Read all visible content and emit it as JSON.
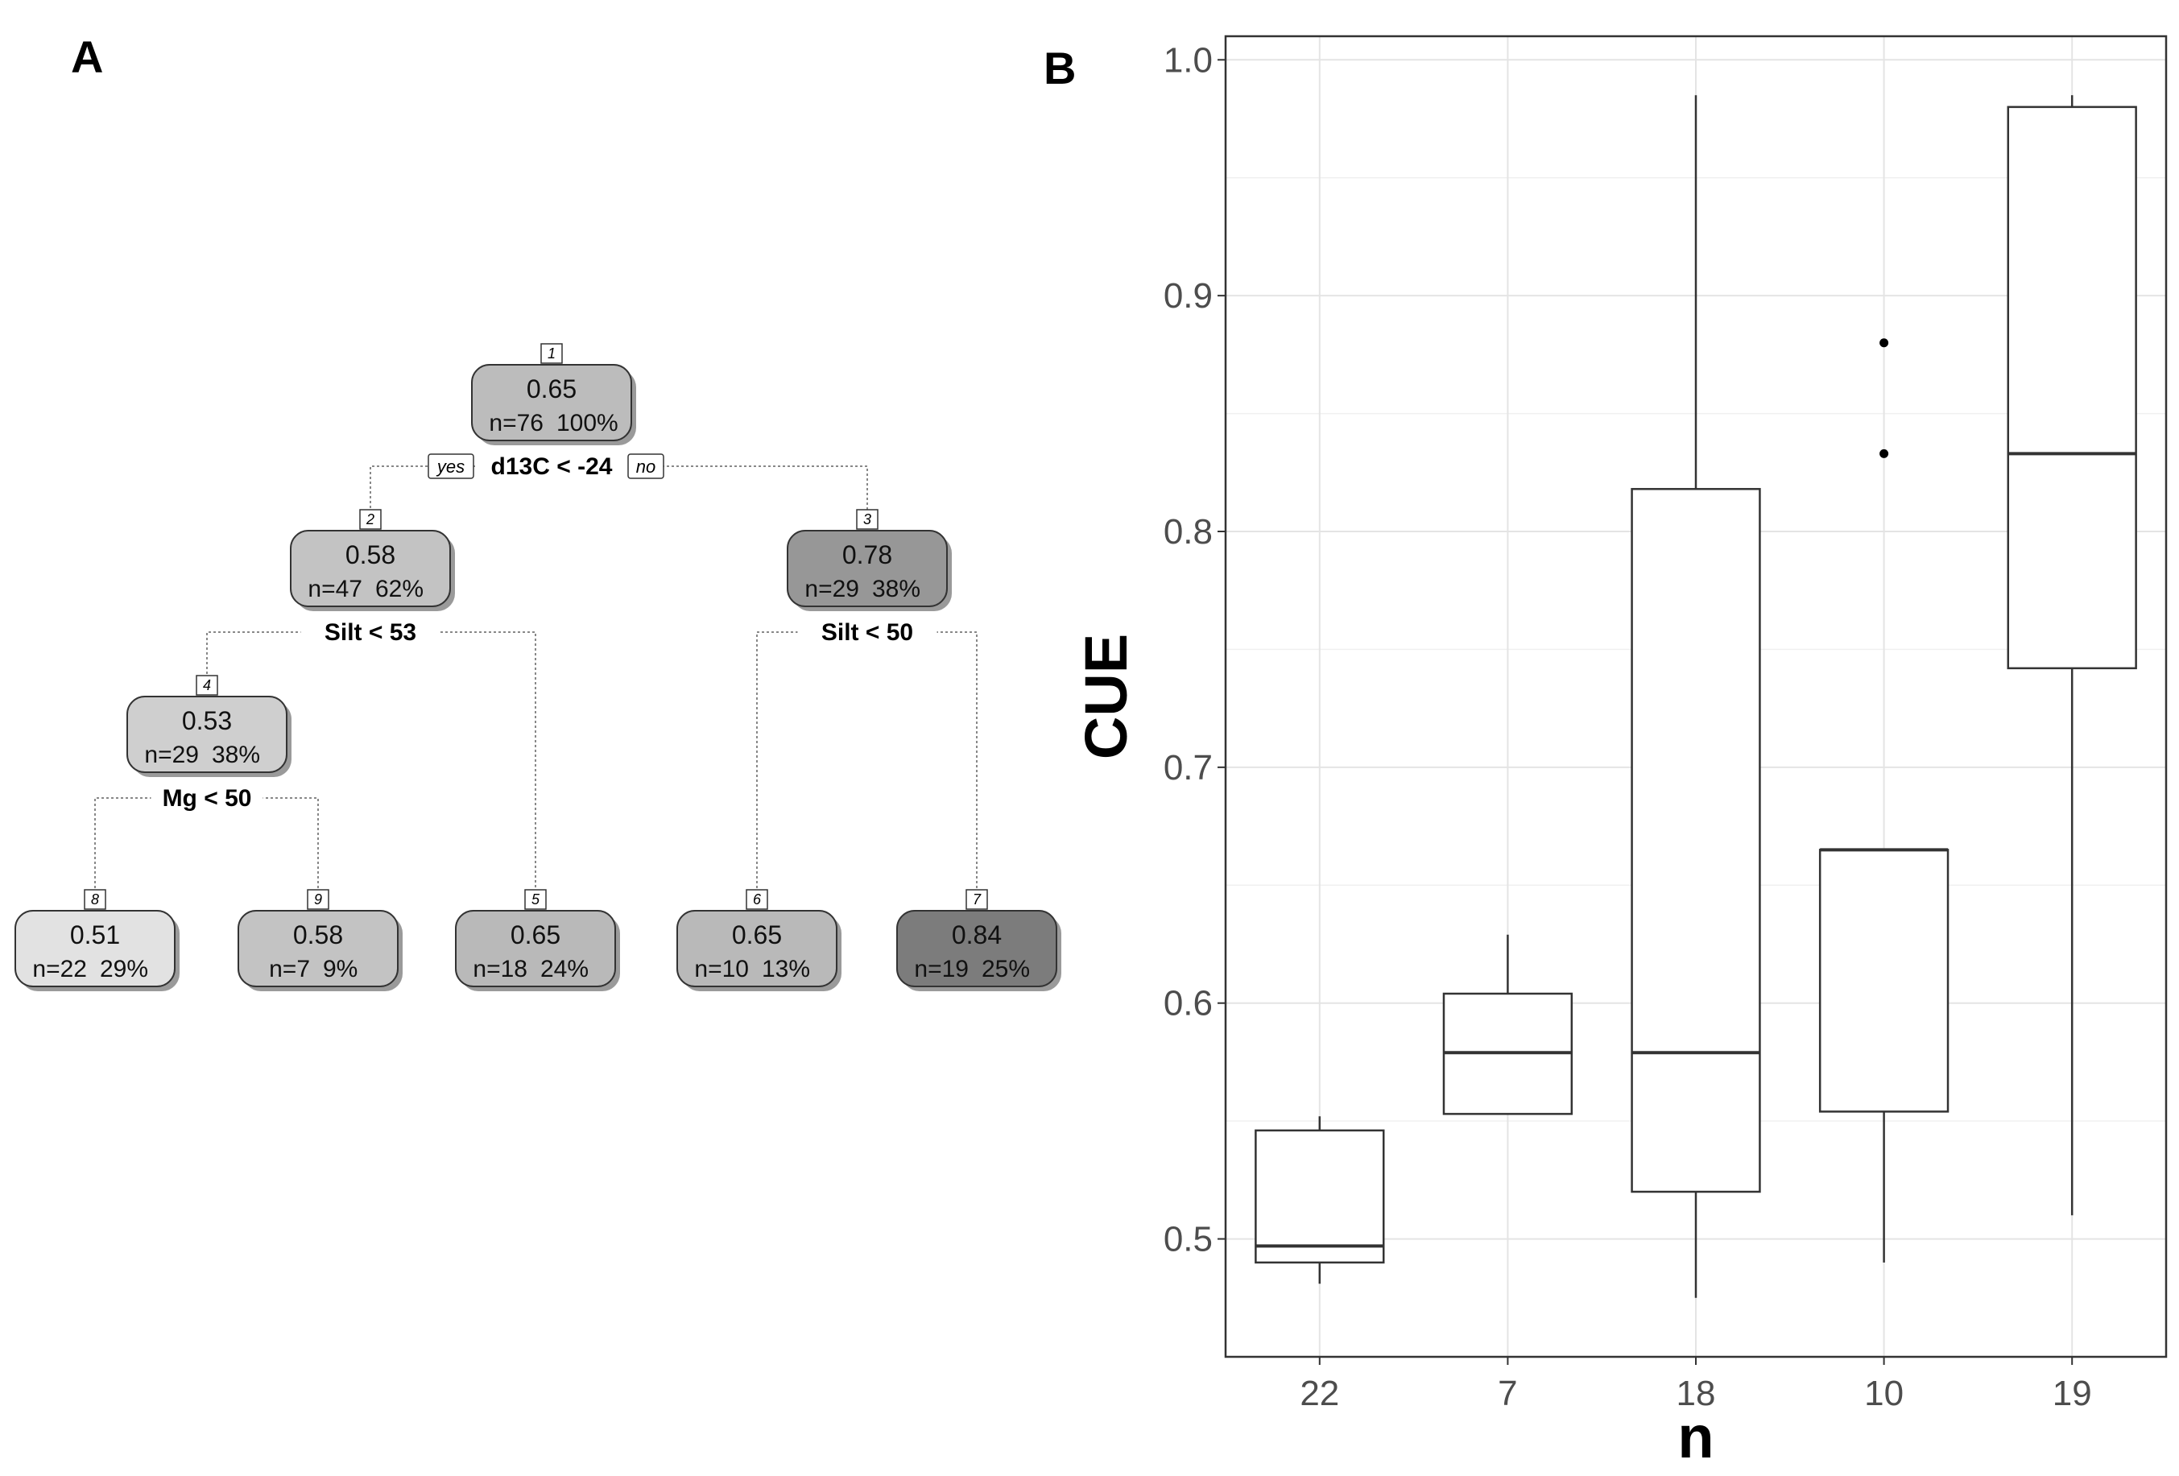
{
  "panels": {
    "a_label": "A",
    "b_label": "B"
  },
  "chart_data": [
    {
      "type": "decision_tree",
      "panel": "A",
      "nodes": [
        {
          "id": "1",
          "value": "0.65",
          "n": "n=76",
          "pct": "100%",
          "shade": "#bcbcbc",
          "level": 0,
          "slot": 0
        },
        {
          "id": "2",
          "value": "0.58",
          "n": "n=47",
          "pct": "62%",
          "shade": "#c3c3c3",
          "level": 1,
          "slot": 1
        },
        {
          "id": "3",
          "value": "0.78",
          "n": "n=29",
          "pct": "38%",
          "shade": "#979797",
          "level": 1,
          "slot": 4
        },
        {
          "id": "4",
          "value": "0.53",
          "n": "n=29",
          "pct": "38%",
          "shade": "#cfcfcf",
          "level": 2,
          "slot": 0
        },
        {
          "id": "8",
          "value": "0.51",
          "n": "n=22",
          "pct": "29%",
          "shade": "#e2e2e2",
          "level": 3,
          "slot": 0
        },
        {
          "id": "9",
          "value": "0.58",
          "n": "n=7",
          "pct": "9%",
          "shade": "#c3c3c3",
          "level": 3,
          "slot": 1
        },
        {
          "id": "5",
          "value": "0.65",
          "n": "n=18",
          "pct": "24%",
          "shade": "#b9b9b9",
          "level": 3,
          "slot": 2
        },
        {
          "id": "6",
          "value": "0.65",
          "n": "n=10",
          "pct": "13%",
          "shade": "#b9b9b9",
          "level": 3,
          "slot": 3
        },
        {
          "id": "7",
          "value": "0.84",
          "n": "n=19",
          "pct": "25%",
          "shade": "#7c7c7c",
          "level": 3,
          "slot": 4
        }
      ],
      "splits": [
        {
          "parent": "1",
          "left": "2",
          "right": "3",
          "rule": "d13C < -24",
          "yes_label": "yes",
          "no_label": "no"
        },
        {
          "parent": "2",
          "left": "4",
          "right": "5",
          "rule": "Silt < 53"
        },
        {
          "parent": "3",
          "left": "6",
          "right": "7",
          "rule": "Silt < 50"
        },
        {
          "parent": "4",
          "left": "8",
          "right": "9",
          "rule": "Mg < 50"
        }
      ]
    },
    {
      "type": "boxplot",
      "panel": "B",
      "xlabel": "n",
      "ylabel": "CUE",
      "ylim": [
        0.45,
        1.01
      ],
      "yticks": [
        0.5,
        0.6,
        0.7,
        0.8,
        0.9,
        1.0
      ],
      "ytick_labels": [
        "0.5",
        "0.6",
        "0.7",
        "0.8",
        "0.9",
        "1.0"
      ],
      "grid": true,
      "categories": [
        "22",
        "7",
        "18",
        "10",
        "19"
      ],
      "boxes": [
        {
          "label": "22",
          "whisker_low": 0.481,
          "q1": 0.49,
          "median": 0.497,
          "q3": 0.546,
          "whisker_high": 0.552,
          "outliers": []
        },
        {
          "label": "7",
          "whisker_low": 0.553,
          "q1": 0.553,
          "median": 0.579,
          "q3": 0.604,
          "whisker_high": 0.629,
          "outliers": []
        },
        {
          "label": "18",
          "whisker_low": 0.475,
          "q1": 0.52,
          "median": 0.579,
          "q3": 0.818,
          "whisker_high": 0.985,
          "outliers": []
        },
        {
          "label": "10",
          "whisker_low": 0.49,
          "q1": 0.554,
          "median": 0.665,
          "q3": 0.665,
          "whisker_high": 0.665,
          "outliers": [
            0.833,
            0.88
          ]
        },
        {
          "label": "19",
          "whisker_low": 0.51,
          "q1": 0.742,
          "median": 0.833,
          "q3": 0.98,
          "whisker_high": 0.985,
          "outliers": []
        }
      ]
    }
  ]
}
